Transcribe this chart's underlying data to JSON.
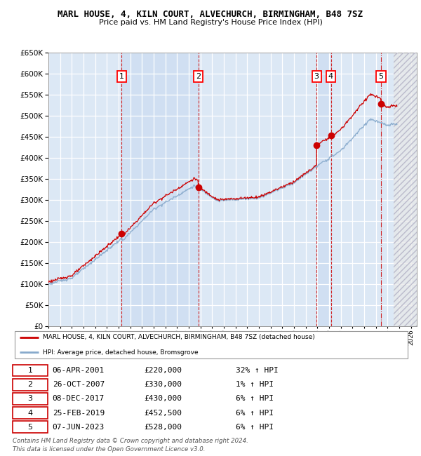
{
  "title1": "MARL HOUSE, 4, KILN COURT, ALVECHURCH, BIRMINGHAM, B48 7SZ",
  "title2": "Price paid vs. HM Land Registry's House Price Index (HPI)",
  "legend_line1": "MARL HOUSE, 4, KILN COURT, ALVECHURCH, BIRMINGHAM, B48 7SZ (detached house)",
  "legend_line2": "HPI: Average price, detached house, Bromsgrove",
  "hpi_color": "#88aacc",
  "sale_color": "#cc0000",
  "transactions": [
    {
      "num": 1,
      "date": "06-APR-2001",
      "price": 220000,
      "pct": "32%",
      "x_year": 2001.27
    },
    {
      "num": 2,
      "date": "26-OCT-2007",
      "price": 330000,
      "pct": "1%",
      "x_year": 2007.82
    },
    {
      "num": 3,
      "date": "08-DEC-2017",
      "price": 430000,
      "pct": "6%",
      "x_year": 2017.93
    },
    {
      "num": 4,
      "date": "25-FEB-2019",
      "price": 452500,
      "pct": "6%",
      "x_year": 2019.15
    },
    {
      "num": 5,
      "date": "07-JUN-2023",
      "price": 528000,
      "pct": "6%",
      "x_year": 2023.44
    }
  ],
  "footer1": "Contains HM Land Registry data © Crown copyright and database right 2024.",
  "footer2": "This data is licensed under the Open Government Licence v3.0.",
  "ylim": [
    0,
    650000
  ],
  "xlim_start": 1995.0,
  "xlim_end": 2026.5,
  "background_chart": "#dce8f5",
  "grid_color": "#ffffff"
}
